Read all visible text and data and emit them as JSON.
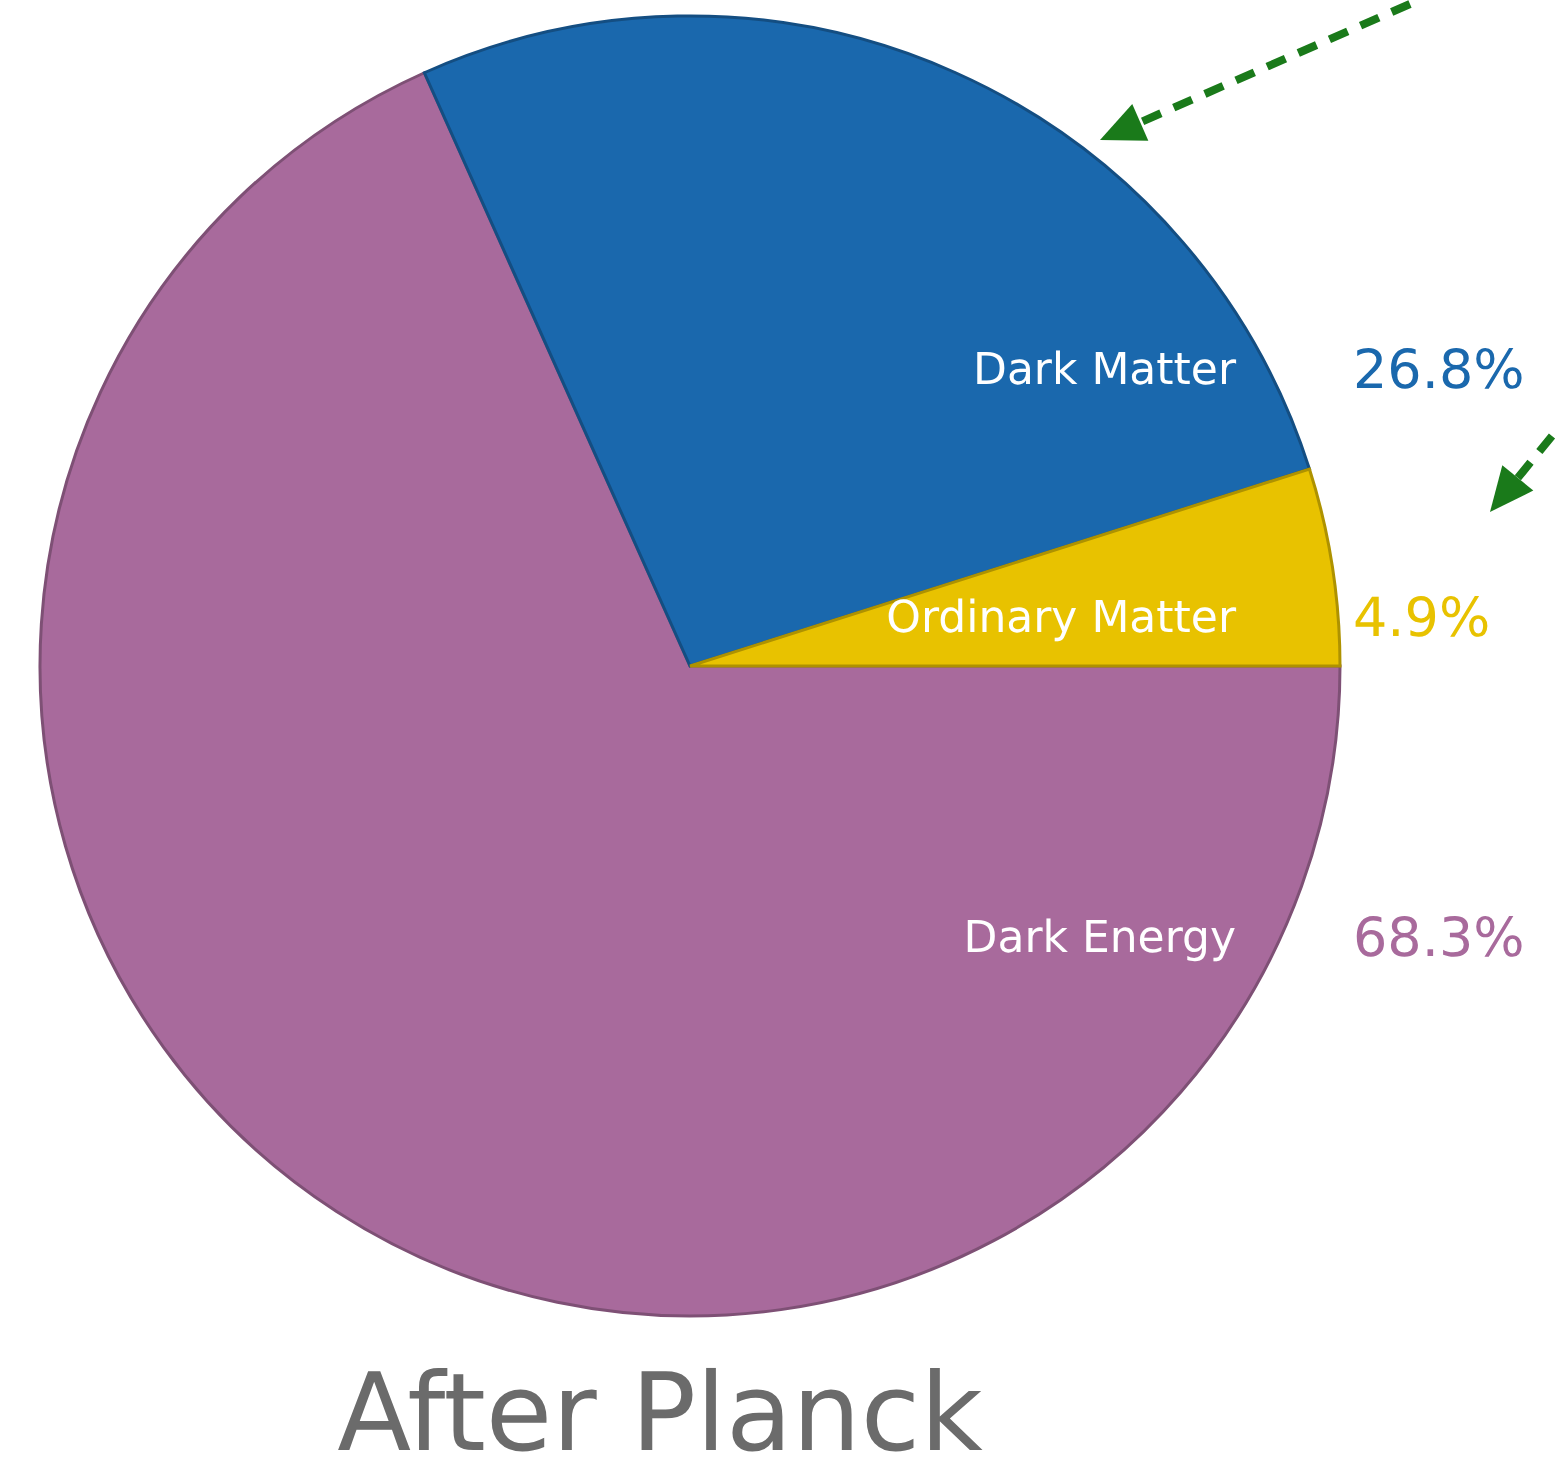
{
  "chart_data": {
    "type": "pie",
    "title": "After Planck",
    "categories": [
      "Dark Energy",
      "Dark Matter",
      "Ordinary Matter"
    ],
    "values": [
      68.3,
      26.8,
      4.9
    ],
    "value_labels": [
      "68.3%",
      "26.8%",
      "4.9%"
    ],
    "colors": [
      "#a86a9c",
      "#1a68ad",
      "#e8c200"
    ]
  }
}
